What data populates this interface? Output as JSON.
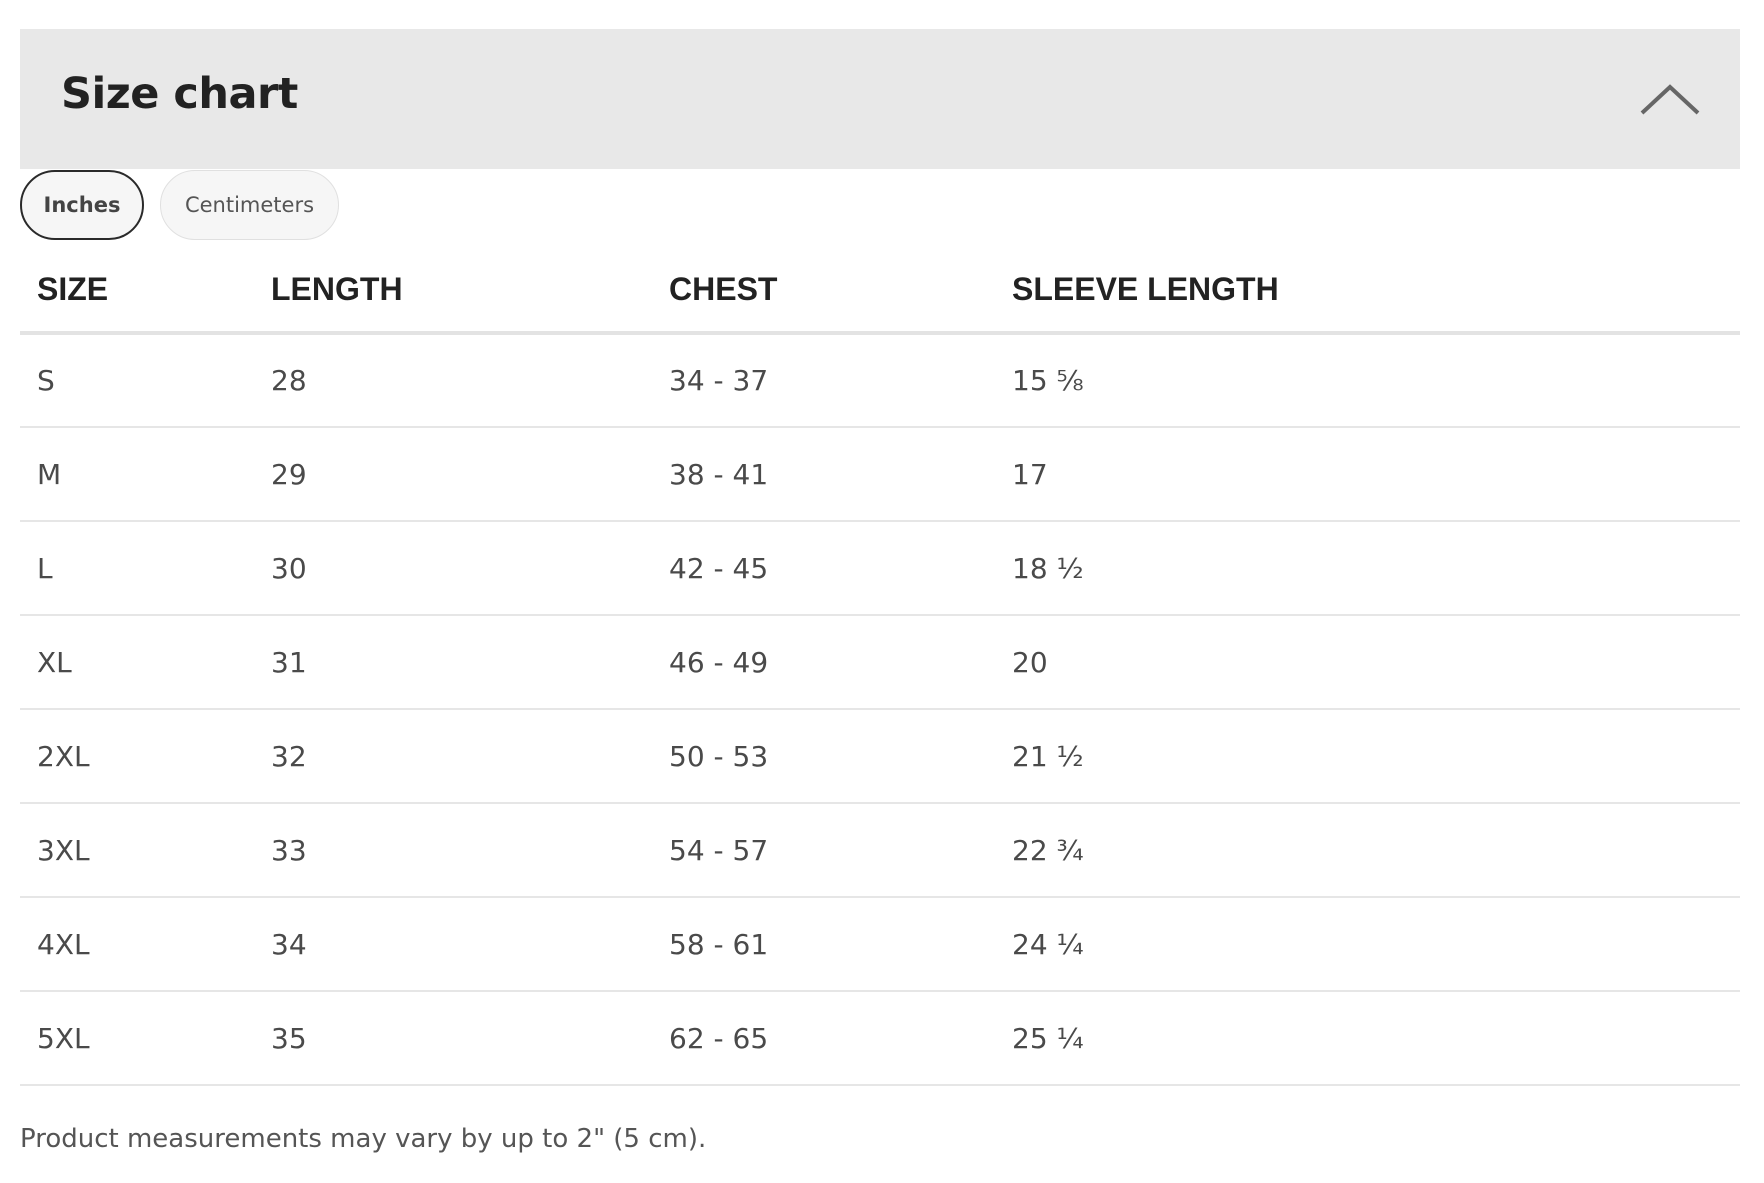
{
  "header": {
    "title": "Size chart",
    "collapse_icon": "chevron-up-icon"
  },
  "units": {
    "options": [
      "Inches",
      "Centimeters"
    ],
    "selected": "Inches"
  },
  "table": {
    "columns": [
      "SIZE",
      "LENGTH",
      "CHEST",
      "SLEEVE LENGTH"
    ],
    "rows": [
      [
        "S",
        "28",
        "34 - 37",
        "15 ⅝"
      ],
      [
        "M",
        "29",
        "38 - 41",
        "17"
      ],
      [
        "L",
        "30",
        "42 - 45",
        "18 ½"
      ],
      [
        "XL",
        "31",
        "46 - 49",
        "20"
      ],
      [
        "2XL",
        "32",
        "50 - 53",
        "21 ½"
      ],
      [
        "3XL",
        "33",
        "54 - 57",
        "22 ¾"
      ],
      [
        "4XL",
        "34",
        "58 - 61",
        "24 ¼"
      ],
      [
        "5XL",
        "35",
        "62 - 65",
        "25 ¼"
      ]
    ]
  },
  "footer": {
    "note": "Product measurements may vary by up to 2\" (5 cm)."
  }
}
